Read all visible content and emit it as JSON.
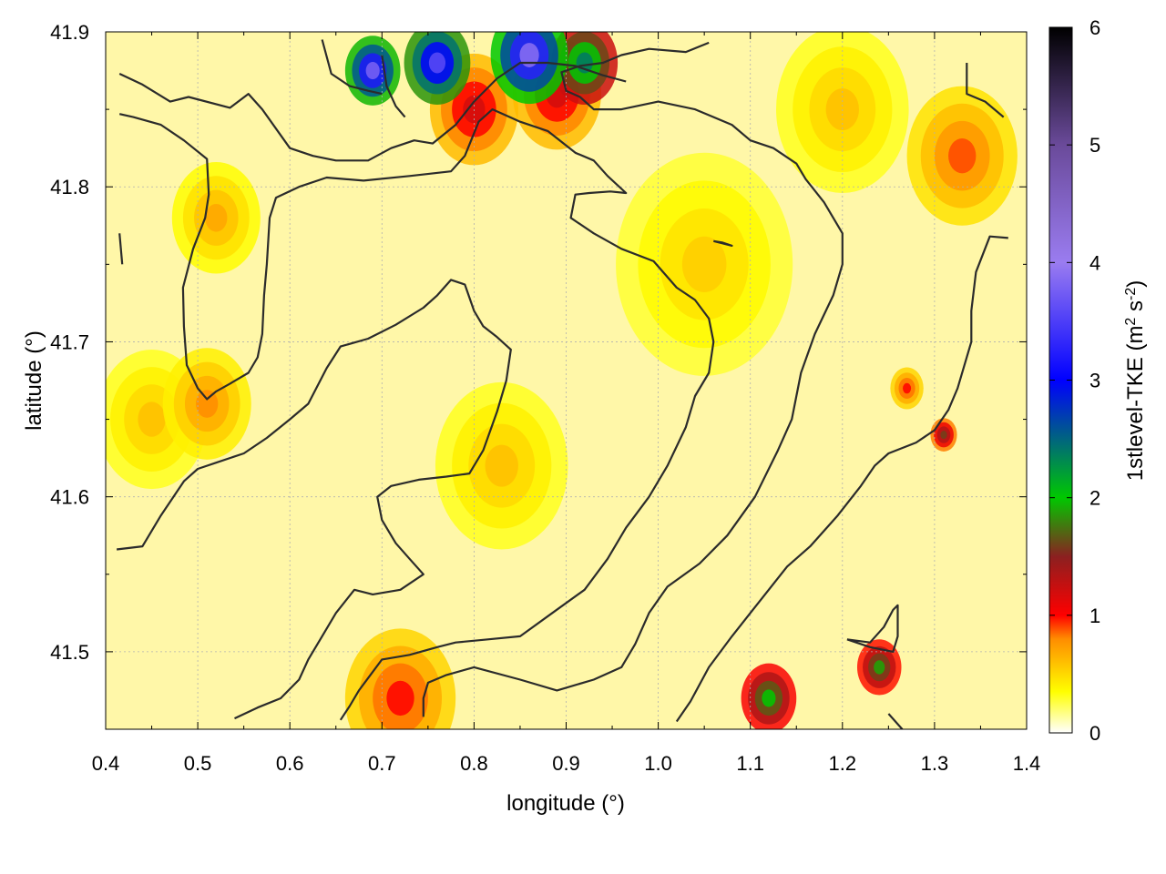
{
  "chart_data": {
    "type": "heatmap",
    "xlabel": "longitude (°)",
    "ylabel": "latitude (°)",
    "colorbar_label": "1stlevel-TKE (m² s⁻²)",
    "colorbar_label_parts": {
      "base": "1stlevel-TKE (m",
      "exp1": "2",
      "mid": " s",
      "exp2": "-2",
      "end": ")"
    },
    "xlim": [
      0.4,
      1.4
    ],
    "ylim": [
      41.45,
      41.9
    ],
    "x_ticks": [
      "0.4",
      "0.5",
      "0.6",
      "0.7",
      "0.8",
      "0.9",
      "1.0",
      "1.1",
      "1.2",
      "1.3",
      "1.4"
    ],
    "x_tick_values": [
      0.4,
      0.5,
      0.6,
      0.7,
      0.8,
      0.9,
      1.0,
      1.1,
      1.2,
      1.3,
      1.4
    ],
    "y_ticks": [
      "41.5",
      "41.6",
      "41.7",
      "41.8",
      "41.9"
    ],
    "y_tick_values": [
      41.5,
      41.6,
      41.7,
      41.8,
      41.9
    ],
    "colorbar_range": [
      0,
      6
    ],
    "colorbar_ticks": [
      "0",
      "1",
      "2",
      "3",
      "4",
      "5",
      "6"
    ],
    "colorbar_tick_values": [
      0,
      1,
      2,
      3,
      4,
      5,
      6
    ],
    "grid": true,
    "colormap": [
      [
        0,
        "#ffffff"
      ],
      [
        0.35,
        "#ffff00"
      ],
      [
        0.8,
        "#ff8c00"
      ],
      [
        1.0,
        "#ff0000"
      ],
      [
        1.5,
        "#8b2020"
      ],
      [
        2.0,
        "#00c800"
      ],
      [
        3.0,
        "#0000ff"
      ],
      [
        4.0,
        "#9a7cf0"
      ],
      [
        5.0,
        "#6a4a9a"
      ],
      [
        6.0,
        "#000000"
      ]
    ],
    "hotspots": [
      {
        "lon": 0.69,
        "lat": 41.875,
        "value": 3.8,
        "radius": 0.025
      },
      {
        "lon": 0.76,
        "lat": 41.88,
        "value": 3.6,
        "radius": 0.03
      },
      {
        "lon": 0.86,
        "lat": 41.885,
        "value": 3.9,
        "radius": 0.035
      },
      {
        "lon": 0.92,
        "lat": 41.88,
        "value": 2.4,
        "radius": 0.03
      },
      {
        "lon": 0.8,
        "lat": 41.85,
        "value": 1.2,
        "radius": 0.04
      },
      {
        "lon": 0.89,
        "lat": 41.86,
        "value": 1.2,
        "radius": 0.04
      },
      {
        "lon": 1.12,
        "lat": 41.47,
        "value": 2.0,
        "radius": 0.025
      },
      {
        "lon": 1.24,
        "lat": 41.49,
        "value": 1.9,
        "radius": 0.02
      },
      {
        "lon": 1.31,
        "lat": 41.64,
        "value": 1.6,
        "radius": 0.012
      },
      {
        "lon": 0.72,
        "lat": 41.47,
        "value": 1.0,
        "radius": 0.05
      },
      {
        "lon": 0.51,
        "lat": 41.66,
        "value": 0.8,
        "radius": 0.04
      },
      {
        "lon": 1.33,
        "lat": 41.82,
        "value": 0.9,
        "radius": 0.05
      },
      {
        "lon": 1.27,
        "lat": 41.67,
        "value": 1.0,
        "radius": 0.015
      },
      {
        "lon": 0.52,
        "lat": 41.78,
        "value": 0.7,
        "radius": 0.04
      },
      {
        "lon": 0.83,
        "lat": 41.62,
        "value": 0.6,
        "radius": 0.06
      },
      {
        "lon": 0.45,
        "lat": 41.65,
        "value": 0.6,
        "radius": 0.05
      },
      {
        "lon": 1.05,
        "lat": 41.75,
        "value": 0.55,
        "radius": 0.08
      },
      {
        "lon": 1.2,
        "lat": 41.85,
        "value": 0.6,
        "radius": 0.06
      }
    ],
    "contours": [
      [
        [
          0.415,
          41.873
        ],
        [
          0.44,
          41.866
        ],
        [
          0.47,
          41.855
        ],
        [
          0.49,
          41.858
        ],
        [
          0.535,
          41.851
        ],
        [
          0.555,
          41.86
        ],
        [
          0.57,
          41.85
        ],
        [
          0.6,
          41.825
        ],
        [
          0.625,
          41.82
        ],
        [
          0.65,
          41.817
        ],
        [
          0.685,
          41.817
        ],
        [
          0.71,
          41.825
        ],
        [
          0.735,
          41.83
        ],
        [
          0.755,
          41.828
        ],
        [
          0.78,
          41.84
        ],
        [
          0.8,
          41.855
        ],
        [
          0.825,
          41.87
        ],
        [
          0.85,
          41.88
        ],
        [
          0.88,
          41.88
        ],
        [
          0.91,
          41.878
        ],
        [
          0.94,
          41.872
        ],
        [
          0.965,
          41.868
        ]
      ],
      [
        [
          0.415,
          41.847
        ],
        [
          0.43,
          41.845
        ],
        [
          0.46,
          41.84
        ],
        [
          0.485,
          41.83
        ],
        [
          0.51,
          41.818
        ],
        [
          0.512,
          41.795
        ],
        [
          0.508,
          41.78
        ],
        [
          0.495,
          41.76
        ],
        [
          0.484,
          41.735
        ],
        [
          0.485,
          41.71
        ],
        [
          0.488,
          41.685
        ],
        [
          0.5,
          41.67
        ],
        [
          0.51,
          41.663
        ],
        [
          0.52,
          41.668
        ],
        [
          0.535,
          41.673
        ],
        [
          0.555,
          41.68
        ],
        [
          0.565,
          41.69
        ],
        [
          0.57,
          41.705
        ],
        [
          0.572,
          41.73
        ],
        [
          0.575,
          41.75
        ],
        [
          0.578,
          41.78
        ],
        [
          0.585,
          41.793
        ],
        [
          0.61,
          41.8
        ],
        [
          0.64,
          41.806
        ],
        [
          0.68,
          41.804
        ],
        [
          0.73,
          41.807
        ],
        [
          0.775,
          41.81
        ],
        [
          0.79,
          41.82
        ],
        [
          0.805,
          41.842
        ],
        [
          0.82,
          41.85
        ],
        [
          0.85,
          41.842
        ],
        [
          0.88,
          41.836
        ],
        [
          0.91,
          41.822
        ],
        [
          0.93,
          41.817
        ],
        [
          0.945,
          41.807
        ],
        [
          0.965,
          41.796
        ],
        [
          0.948,
          41.797
        ],
        [
          0.925,
          41.796
        ],
        [
          0.91,
          41.795
        ],
        [
          0.905,
          41.78
        ],
        [
          0.93,
          41.77
        ],
        [
          0.96,
          41.76
        ],
        [
          0.995,
          41.752
        ],
        [
          1.02,
          41.735
        ],
        [
          1.04,
          41.727
        ],
        [
          1.055,
          41.715
        ],
        [
          1.06,
          41.7
        ],
        [
          1.055,
          41.68
        ],
        [
          1.04,
          41.665
        ],
        [
          1.03,
          41.645
        ],
        [
          1.01,
          41.62
        ],
        [
          0.99,
          41.6
        ],
        [
          0.965,
          41.58
        ],
        [
          0.945,
          41.56
        ],
        [
          0.92,
          41.54
        ],
        [
          0.885,
          41.525
        ],
        [
          0.85,
          41.51
        ],
        [
          0.815,
          41.508
        ],
        [
          0.78,
          41.506
        ],
        [
          0.76,
          41.503
        ],
        [
          0.73,
          41.498
        ],
        [
          0.7,
          41.495
        ],
        [
          0.685,
          41.483
        ],
        [
          0.675,
          41.475
        ],
        [
          0.665,
          41.465
        ],
        [
          0.655,
          41.456
        ]
      ],
      [
        [
          0.745,
          41.458
        ],
        [
          0.745,
          41.47
        ],
        [
          0.75,
          41.48
        ],
        [
          0.77,
          41.485
        ],
        [
          0.8,
          41.49
        ],
        [
          0.85,
          41.482
        ],
        [
          0.89,
          41.475
        ],
        [
          0.93,
          41.482
        ],
        [
          0.96,
          41.49
        ],
        [
          0.975,
          41.505
        ],
        [
          0.99,
          41.525
        ],
        [
          1.01,
          41.542
        ],
        [
          1.045,
          41.557
        ],
        [
          1.075,
          41.575
        ],
        [
          1.105,
          41.6
        ],
        [
          1.13,
          41.63
        ],
        [
          1.145,
          41.65
        ],
        [
          1.155,
          41.68
        ],
        [
          1.17,
          41.705
        ],
        [
          1.19,
          41.73
        ],
        [
          1.2,
          41.75
        ],
        [
          1.2,
          41.77
        ],
        [
          1.18,
          41.79
        ],
        [
          1.16,
          41.805
        ],
        [
          1.15,
          41.815
        ],
        [
          1.125,
          41.825
        ],
        [
          1.1,
          41.83
        ],
        [
          1.08,
          41.84
        ],
        [
          1.04,
          41.85
        ],
        [
          1.0,
          41.855
        ],
        [
          0.96,
          41.85
        ],
        [
          0.93,
          41.85
        ],
        [
          0.915,
          41.858
        ],
        [
          0.9,
          41.862
        ],
        [
          0.895,
          41.874
        ],
        [
          0.915,
          41.878
        ],
        [
          0.94,
          41.88
        ],
        [
          0.96,
          41.885
        ],
        [
          0.99,
          41.889
        ],
        [
          1.03,
          41.887
        ],
        [
          1.055,
          41.893
        ]
      ],
      [
        [
          0.412,
          41.566
        ],
        [
          0.44,
          41.568
        ],
        [
          0.46,
          41.588
        ],
        [
          0.485,
          41.61
        ],
        [
          0.5,
          41.618
        ],
        [
          0.52,
          41.622
        ],
        [
          0.55,
          41.628
        ],
        [
          0.575,
          41.638
        ],
        [
          0.6,
          41.65
        ],
        [
          0.62,
          41.66
        ],
        [
          0.64,
          41.683
        ],
        [
          0.655,
          41.697
        ],
        [
          0.685,
          41.702
        ],
        [
          0.715,
          41.711
        ],
        [
          0.745,
          41.722
        ],
        [
          0.76,
          41.73
        ],
        [
          0.775,
          41.74
        ],
        [
          0.79,
          41.737
        ],
        [
          0.8,
          41.72
        ],
        [
          0.81,
          41.71
        ],
        [
          0.825,
          41.703
        ],
        [
          0.84,
          41.695
        ],
        [
          0.835,
          41.675
        ],
        [
          0.825,
          41.655
        ],
        [
          0.81,
          41.63
        ],
        [
          0.795,
          41.615
        ],
        [
          0.77,
          41.613
        ],
        [
          0.74,
          41.611
        ],
        [
          0.71,
          41.607
        ],
        [
          0.695,
          41.6
        ],
        [
          0.7,
          41.585
        ],
        [
          0.715,
          41.57
        ],
        [
          0.73,
          41.56
        ],
        [
          0.745,
          41.55
        ],
        [
          0.72,
          41.54
        ],
        [
          0.69,
          41.537
        ],
        [
          0.67,
          41.54
        ],
        [
          0.65,
          41.525
        ],
        [
          0.635,
          41.51
        ],
        [
          0.62,
          41.495
        ],
        [
          0.61,
          41.482
        ],
        [
          0.59,
          41.47
        ],
        [
          0.565,
          41.464
        ],
        [
          0.54,
          41.457
        ]
      ],
      [
        [
          1.02,
          41.455
        ],
        [
          1.035,
          41.468
        ],
        [
          1.055,
          41.49
        ],
        [
          1.08,
          41.51
        ],
        [
          1.1,
          41.525
        ],
        [
          1.12,
          41.54
        ],
        [
          1.14,
          41.555
        ],
        [
          1.165,
          41.568
        ],
        [
          1.195,
          41.588
        ],
        [
          1.22,
          41.607
        ],
        [
          1.235,
          41.62
        ],
        [
          1.25,
          41.628
        ],
        [
          1.28,
          41.635
        ],
        [
          1.3,
          41.643
        ],
        [
          1.315,
          41.656
        ],
        [
          1.325,
          41.67
        ],
        [
          1.34,
          41.7
        ],
        [
          1.34,
          41.72
        ],
        [
          1.345,
          41.745
        ],
        [
          1.36,
          41.768
        ],
        [
          1.38,
          41.767
        ]
      ],
      [
        [
          1.205,
          41.508
        ],
        [
          1.23,
          41.503
        ],
        [
          1.255,
          41.5
        ],
        [
          1.26,
          41.51
        ],
        [
          1.26,
          41.53
        ],
        [
          1.255,
          41.527
        ],
        [
          1.245,
          41.516
        ],
        [
          1.23,
          41.506
        ],
        [
          1.205,
          41.508
        ]
      ],
      [
        [
          1.25,
          41.46
        ],
        [
          1.265,
          41.45
        ]
      ],
      [
        [
          1.06,
          41.765
        ],
        [
          1.08,
          41.762
        ],
        [
          1.07,
          41.764
        ],
        [
          1.06,
          41.765
        ]
      ],
      [
        [
          0.415,
          41.77
        ],
        [
          0.418,
          41.75
        ]
      ],
      [
        [
          1.335,
          41.88
        ],
        [
          1.335,
          41.86
        ],
        [
          1.355,
          41.855
        ],
        [
          1.375,
          41.845
        ]
      ],
      [
        [
          0.7,
          41.885
        ],
        [
          0.705,
          41.865
        ],
        [
          0.715,
          41.852
        ],
        [
          0.725,
          41.845
        ]
      ],
      [
        [
          0.635,
          41.895
        ],
        [
          0.645,
          41.873
        ],
        [
          0.665,
          41.865
        ],
        [
          0.685,
          41.862
        ],
        [
          0.7,
          41.86
        ]
      ]
    ]
  }
}
